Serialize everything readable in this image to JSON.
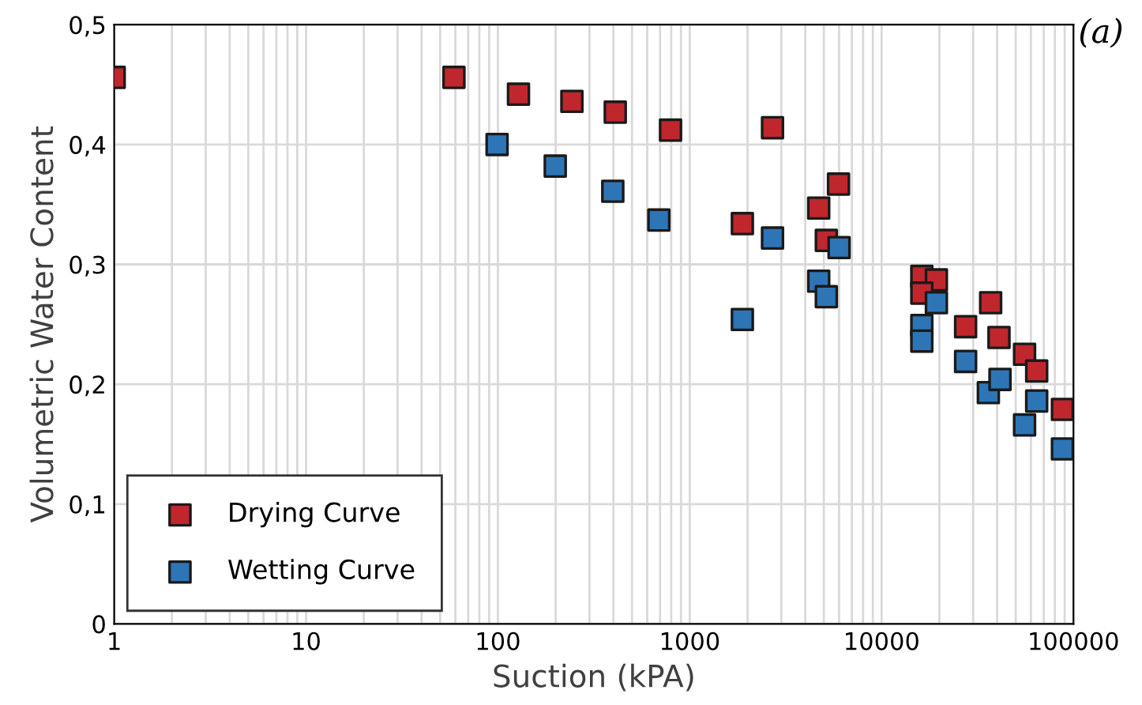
{
  "chart_data": {
    "type": "scatter",
    "xlabel": "Suction (kPA)",
    "ylabel": "Volumetric Water Content",
    "annotations": [
      "(a)"
    ],
    "log": "x",
    "xlim": [
      1,
      100000
    ],
    "xticks": [
      1,
      10,
      100,
      1000,
      10000,
      100000
    ],
    "ylim": [
      0,
      0.5
    ],
    "yticks": [
      {
        "value": 0,
        "label": "0"
      },
      {
        "value": 0.1,
        "label": "0,1"
      },
      {
        "value": 0.2,
        "label": "0,2"
      },
      {
        "value": 0.3,
        "label": "0,3"
      },
      {
        "value": 0.4,
        "label": "0,4"
      },
      {
        "value": 0.5,
        "label": "0,5"
      }
    ],
    "grid": true,
    "legend": "bottom left",
    "marker": "square",
    "series": [
      {
        "name": "Drying Curve",
        "color": "#c0272d",
        "x": [
          1,
          59,
          128,
          243,
          409,
          794,
          2700,
          5960,
          4700,
          5150,
          1880,
          16200,
          19300,
          16200,
          34000,
          37000,
          27400,
          40900,
          55600,
          64300,
          87600
        ],
        "values": [
          0.456,
          0.456,
          0.442,
          0.436,
          0.427,
          0.412,
          0.414,
          0.367,
          0.347,
          0.32,
          0.334,
          0.29,
          0.287,
          0.276,
          null,
          0.268,
          0.248,
          0.239,
          0.225,
          0.211,
          0.179
        ]
      },
      {
        "name": "Wetting Curve",
        "color": "#2e75b6",
        "x": [
          99,
          199,
          397,
          690,
          2700,
          6000,
          4700,
          5150,
          1880,
          19300,
          16200,
          16200,
          27400,
          34900,
          36000,
          41400,
          64300,
          55600,
          87600
        ],
        "values": [
          0.4,
          0.382,
          0.361,
          0.337,
          0.322,
          0.314,
          0.286,
          0.273,
          0.254,
          0.268,
          0.249,
          0.236,
          0.219,
          null,
          0.193,
          0.204,
          0.186,
          0.166,
          0.146
        ]
      }
    ]
  }
}
